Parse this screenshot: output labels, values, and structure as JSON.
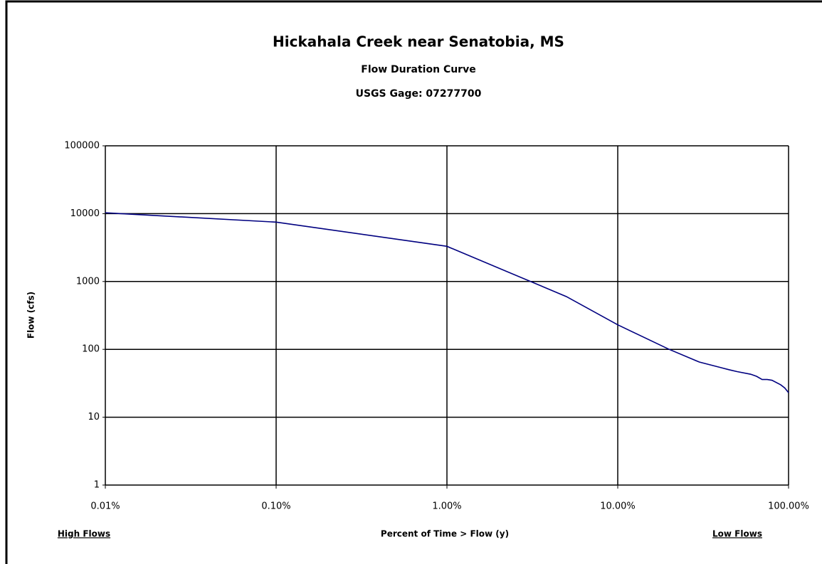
{
  "chart_data": {
    "type": "line",
    "title": "Hickahala Creek near Senatobia, MS",
    "subtitle": "Flow Duration Curve",
    "subtitle2": "USGS Gage:  07277700",
    "y_label": "Flow (cfs)",
    "x_label": "Percent of Time > Flow (y)",
    "annotations": [
      "High Flows",
      "Low Flows"
    ],
    "x_log": true,
    "y_log": true,
    "grid": true,
    "xlim": [
      0.01,
      100
    ],
    "ylim": [
      1,
      100000
    ],
    "xticks": [
      {
        "value": 0.01,
        "label": "0.01%"
      },
      {
        "value": 0.1,
        "label": "0.10%"
      },
      {
        "value": 1,
        "label": "1.00%"
      },
      {
        "value": 10,
        "label": "10.00%"
      },
      {
        "value": 100,
        "label": "100.00%"
      }
    ],
    "yticks": [
      1,
      10,
      100,
      1000,
      10000,
      100000
    ],
    "series": [
      {
        "color": "#000080",
        "x": [
          0.01,
          0.1,
          1,
          5,
          10,
          20,
          30,
          40,
          45,
          50,
          60,
          65,
          70,
          75,
          80,
          90,
          95,
          100
        ],
        "values": [
          10300,
          7500,
          3300,
          600,
          230,
          100,
          65,
          54,
          50,
          47,
          43,
          40,
          36,
          36,
          35,
          30,
          27,
          23
        ]
      }
    ]
  }
}
